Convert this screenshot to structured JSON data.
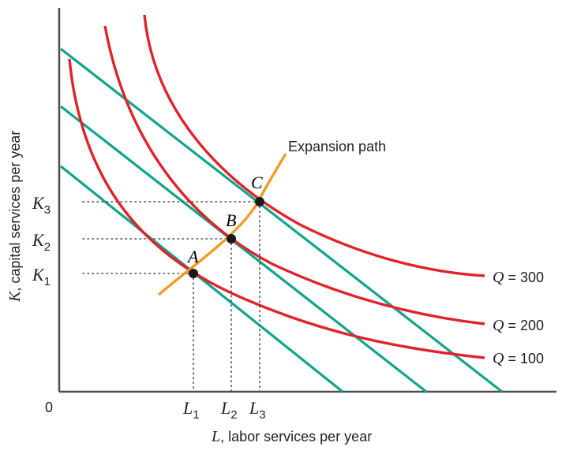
{
  "axes": {
    "origin": "0",
    "x_var": "L",
    "x_rest": ", labor services per year",
    "y_var": "K",
    "y_rest": ", capital services per year"
  },
  "isoquants": [
    {
      "q_var": "Q",
      "q_eq": " = 100"
    },
    {
      "q_var": "Q",
      "q_eq": " = 200"
    },
    {
      "q_var": "Q",
      "q_eq": " = 300"
    }
  ],
  "points": [
    {
      "label": "A",
      "l_main": "L",
      "l_sub": "1",
      "k_main": "K",
      "k_sub": "1"
    },
    {
      "label": "B",
      "l_main": "L",
      "l_sub": "2",
      "k_main": "K",
      "k_sub": "2"
    },
    {
      "label": "C",
      "l_main": "L",
      "l_sub": "3",
      "k_main": "K",
      "k_sub": "3"
    }
  ],
  "expansion_path": {
    "label": "Expansion path"
  },
  "colors": {
    "axis": "#4d4d4d",
    "isoquant": "#e0232a",
    "isocost": "#10a48c",
    "expansion_path": "#f29b24",
    "point": "#1a1a1a",
    "guide": "#4d4d4d"
  }
}
